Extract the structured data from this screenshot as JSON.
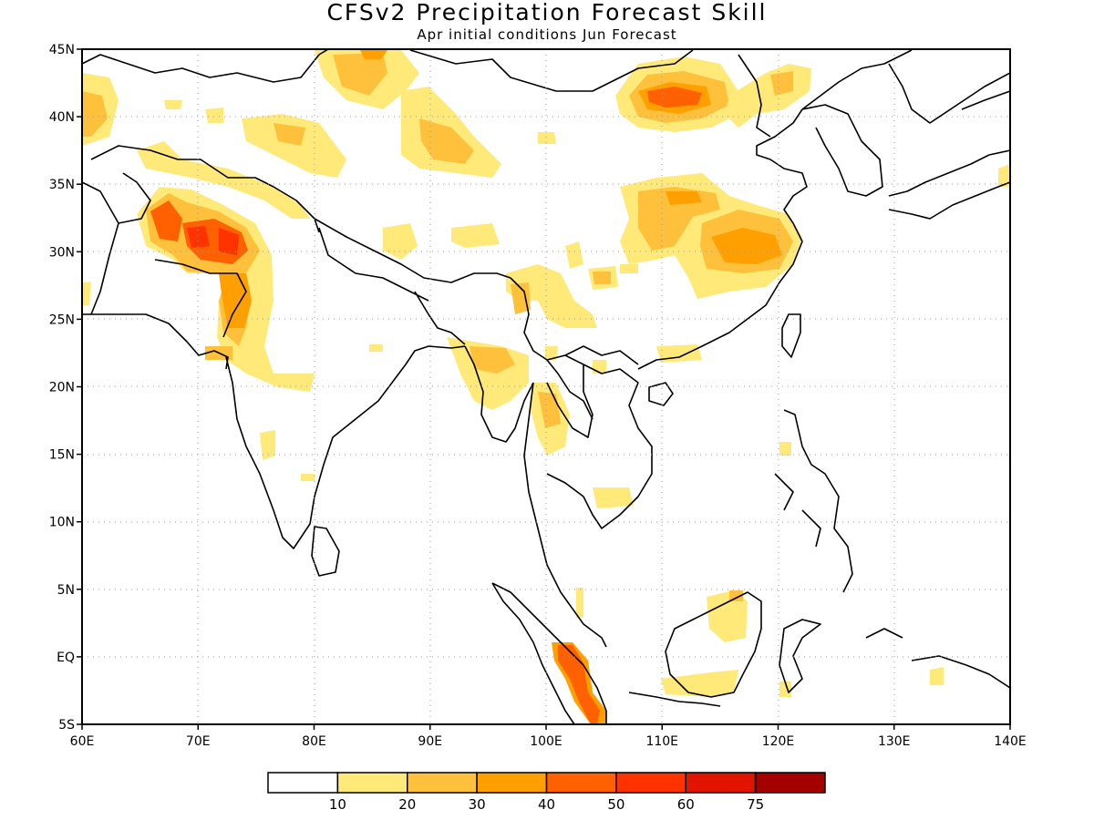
{
  "header": {
    "title": "CFSv2 Precipitation Forecast Skill",
    "subtitle": "Apr initial conditions  Jun Forecast"
  },
  "map": {
    "lon_range": [
      60,
      140
    ],
    "lat_range": [
      -5,
      45
    ],
    "lon_ticks": [
      {
        "value": 60,
        "label": "60E"
      },
      {
        "value": 70,
        "label": "70E"
      },
      {
        "value": 80,
        "label": "80E"
      },
      {
        "value": 90,
        "label": "90E"
      },
      {
        "value": 100,
        "label": "100E"
      },
      {
        "value": 110,
        "label": "110E"
      },
      {
        "value": 120,
        "label": "120E"
      },
      {
        "value": 130,
        "label": "130E"
      },
      {
        "value": 140,
        "label": "140E"
      }
    ],
    "lat_ticks": [
      {
        "value": 45,
        "label": "45N"
      },
      {
        "value": 40,
        "label": "40N"
      },
      {
        "value": 35,
        "label": "35N"
      },
      {
        "value": 30,
        "label": "30N"
      },
      {
        "value": 25,
        "label": "25N"
      },
      {
        "value": 20,
        "label": "20N"
      },
      {
        "value": 15,
        "label": "15N"
      },
      {
        "value": 10,
        "label": "10N"
      },
      {
        "value": 5,
        "label": "5N"
      },
      {
        "value": 0,
        "label": "EQ"
      },
      {
        "value": -5,
        "label": "5S"
      }
    ],
    "grid": "dotted"
  },
  "colorbar": {
    "colors": [
      "#ffffff",
      "#ffe978",
      "#ffc03c",
      "#ffa000",
      "#ff6000",
      "#ff3200",
      "#e11400",
      "#a50000"
    ],
    "labels": [
      "10",
      "20",
      "30",
      "40",
      "50",
      "60",
      "75"
    ]
  }
}
